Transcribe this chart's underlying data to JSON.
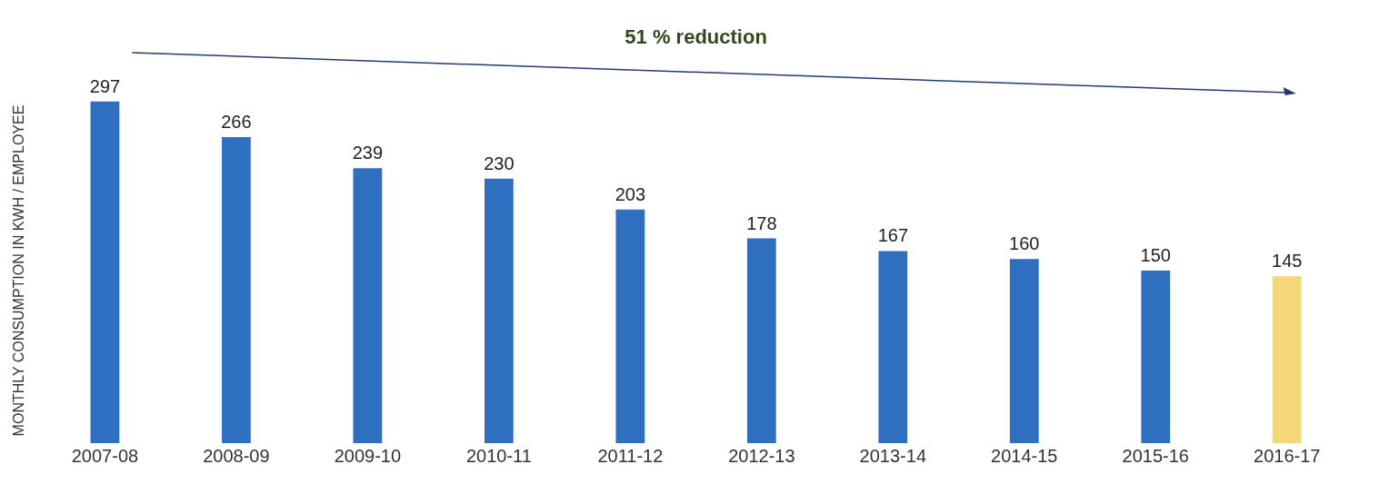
{
  "chart_data": {
    "type": "bar",
    "ylabel": "MONTHLY CONSUMPTION IN KWH / EMPLOYEE",
    "categories": [
      "2007-08",
      "2008-09",
      "2009-10",
      "2010-11",
      "2011-12",
      "2012-13",
      "2013-14",
      "2014-15",
      "2015-16",
      "2016-17"
    ],
    "values": [
      297,
      266,
      239,
      230,
      203,
      178,
      167,
      160,
      150,
      145
    ],
    "colors": [
      "#2f6fc0",
      "#2f6fc0",
      "#2f6fc0",
      "#2f6fc0",
      "#2f6fc0",
      "#2f6fc0",
      "#2f6fc0",
      "#2f6fc0",
      "#2f6fc0",
      "#f5d77a"
    ],
    "data_labels": true,
    "grid": false,
    "legend": false,
    "annotations": [
      "51 % reduction"
    ]
  }
}
